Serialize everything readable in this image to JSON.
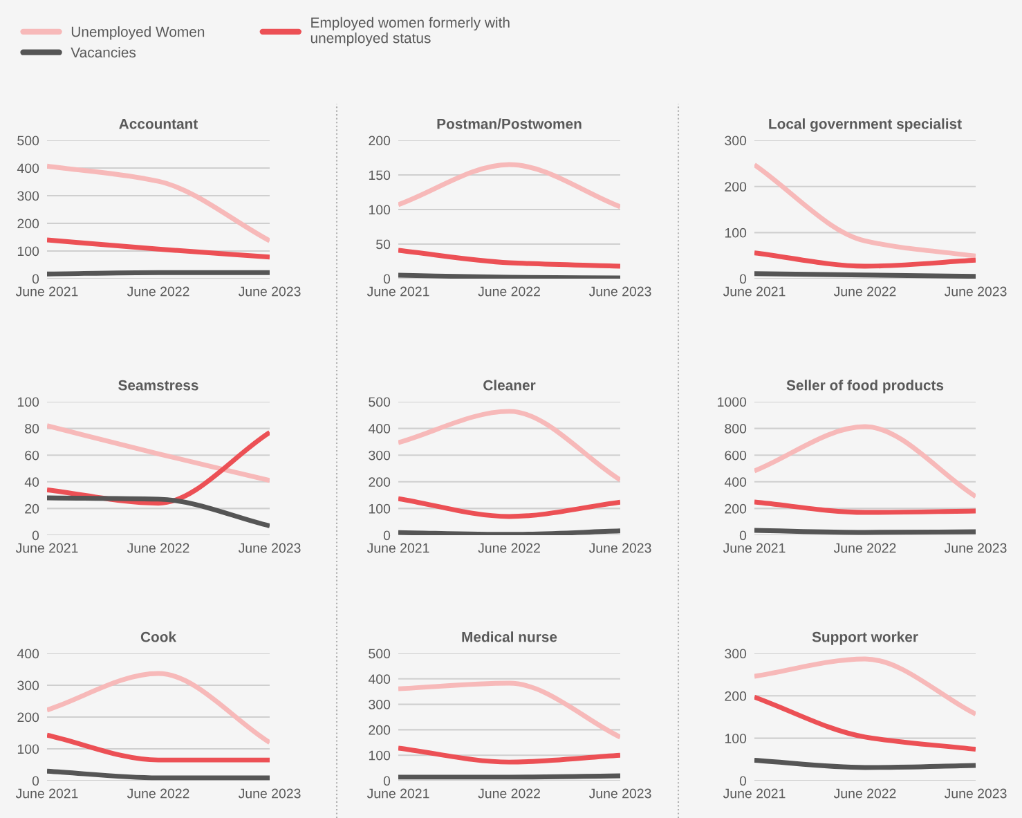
{
  "chart_data": [
    {
      "type": "line",
      "title": "Accountant",
      "categories": [
        "June 2021",
        "June 2022",
        "June 2023"
      ],
      "ylim": [
        0,
        500
      ],
      "yticks": [
        0,
        100,
        200,
        300,
        400,
        500
      ],
      "grid": "y",
      "legend": "top",
      "series": [
        {
          "name": "Unemployed Women",
          "color": "#f7b9b9",
          "values": [
            407,
            352,
            137
          ]
        },
        {
          "name": "Employed women formerly with\nunemployed status",
          "color": "#ec5055",
          "values": [
            140,
            107,
            78
          ]
        },
        {
          "name": "Vacancies",
          "color": "#555555",
          "values": [
            17,
            22,
            22
          ]
        }
      ]
    },
    {
      "type": "line",
      "title": "Postman/Postwomen",
      "categories": [
        "June 2021",
        "June 2022",
        "June 2023"
      ],
      "ylim": [
        0,
        200
      ],
      "yticks": [
        0,
        50,
        100,
        150,
        200
      ],
      "grid": "y",
      "series": [
        {
          "color": "#f7b9b9",
          "values": [
            107,
            165,
            104
          ]
        },
        {
          "color": "#ec5055",
          "values": [
            41,
            23,
            18
          ]
        },
        {
          "color": "#555555",
          "values": [
            5,
            2,
            1
          ]
        }
      ]
    },
    {
      "type": "line",
      "title": "Local government specialist",
      "categories": [
        "June 2021",
        "June 2022",
        "June 2023"
      ],
      "ylim": [
        0,
        300
      ],
      "yticks": [
        0,
        100,
        200,
        300
      ],
      "grid": "y",
      "series": [
        {
          "color": "#f7b9b9",
          "values": [
            247,
            82,
            49
          ]
        },
        {
          "color": "#ec5055",
          "values": [
            56,
            27,
            40
          ]
        },
        {
          "color": "#555555",
          "values": [
            11,
            8,
            5
          ]
        }
      ]
    },
    {
      "type": "line",
      "title": "Seamstress",
      "categories": [
        "June 2021",
        "June 2022",
        "June 2023"
      ],
      "ylim": [
        0,
        100
      ],
      "yticks": [
        0,
        20,
        40,
        60,
        80,
        100
      ],
      "grid": "y",
      "series": [
        {
          "color": "#f7b9b9",
          "values": [
            82,
            61,
            41
          ]
        },
        {
          "color": "#ec5055",
          "values": [
            34,
            24,
            77
          ]
        },
        {
          "color": "#555555",
          "values": [
            28,
            27,
            7
          ]
        }
      ]
    },
    {
      "type": "line",
      "title": "Cleaner",
      "categories": [
        "June 2021",
        "June 2022",
        "June 2023"
      ],
      "ylim": [
        0,
        500
      ],
      "yticks": [
        0,
        100,
        200,
        300,
        400,
        500
      ],
      "grid": "y",
      "series": [
        {
          "color": "#f7b9b9",
          "values": [
            347,
            464,
            207
          ]
        },
        {
          "color": "#ec5055",
          "values": [
            137,
            70,
            124
          ]
        },
        {
          "color": "#555555",
          "values": [
            10,
            3,
            16
          ]
        }
      ]
    },
    {
      "type": "line",
      "title": "Seller of food products",
      "categories": [
        "June 2021",
        "June 2022",
        "June 2023"
      ],
      "ylim": [
        0,
        1000
      ],
      "yticks": [
        0,
        200,
        400,
        600,
        800,
        1000
      ],
      "grid": "y",
      "series": [
        {
          "color": "#f7b9b9",
          "values": [
            482,
            813,
            290
          ]
        },
        {
          "color": "#ec5055",
          "values": [
            249,
            171,
            181
          ]
        },
        {
          "color": "#555555",
          "values": [
            36,
            21,
            26
          ]
        }
      ]
    },
    {
      "type": "line",
      "title": "Cook",
      "categories": [
        "June 2021",
        "June 2022",
        "June 2023"
      ],
      "ylim": [
        0,
        400
      ],
      "yticks": [
        0,
        100,
        200,
        300,
        400
      ],
      "grid": "y",
      "series": [
        {
          "color": "#f7b9b9",
          "values": [
            222,
            337,
            120
          ]
        },
        {
          "color": "#ec5055",
          "values": [
            143,
            65,
            65
          ]
        },
        {
          "color": "#555555",
          "values": [
            30,
            9,
            9
          ]
        }
      ]
    },
    {
      "type": "line",
      "title": "Medical nurse",
      "categories": [
        "June 2021",
        "June 2022",
        "June 2023"
      ],
      "ylim": [
        0,
        500
      ],
      "yticks": [
        0,
        100,
        200,
        300,
        400,
        500
      ],
      "grid": "y",
      "series": [
        {
          "color": "#f7b9b9",
          "values": [
            361,
            383,
            171
          ]
        },
        {
          "color": "#ec5055",
          "values": [
            128,
            73,
            100
          ]
        },
        {
          "color": "#555555",
          "values": [
            14,
            14,
            19
          ]
        }
      ]
    },
    {
      "type": "line",
      "title": "Support worker",
      "categories": [
        "June 2021",
        "June 2022",
        "June 2023"
      ],
      "ylim": [
        0,
        300
      ],
      "yticks": [
        0,
        100,
        200,
        300
      ],
      "grid": "y",
      "series": [
        {
          "color": "#f7b9b9",
          "values": [
            246,
            287,
            157
          ]
        },
        {
          "color": "#ec5055",
          "values": [
            197,
            103,
            74
          ]
        },
        {
          "color": "#555555",
          "values": [
            48,
            31,
            36
          ]
        }
      ]
    }
  ]
}
